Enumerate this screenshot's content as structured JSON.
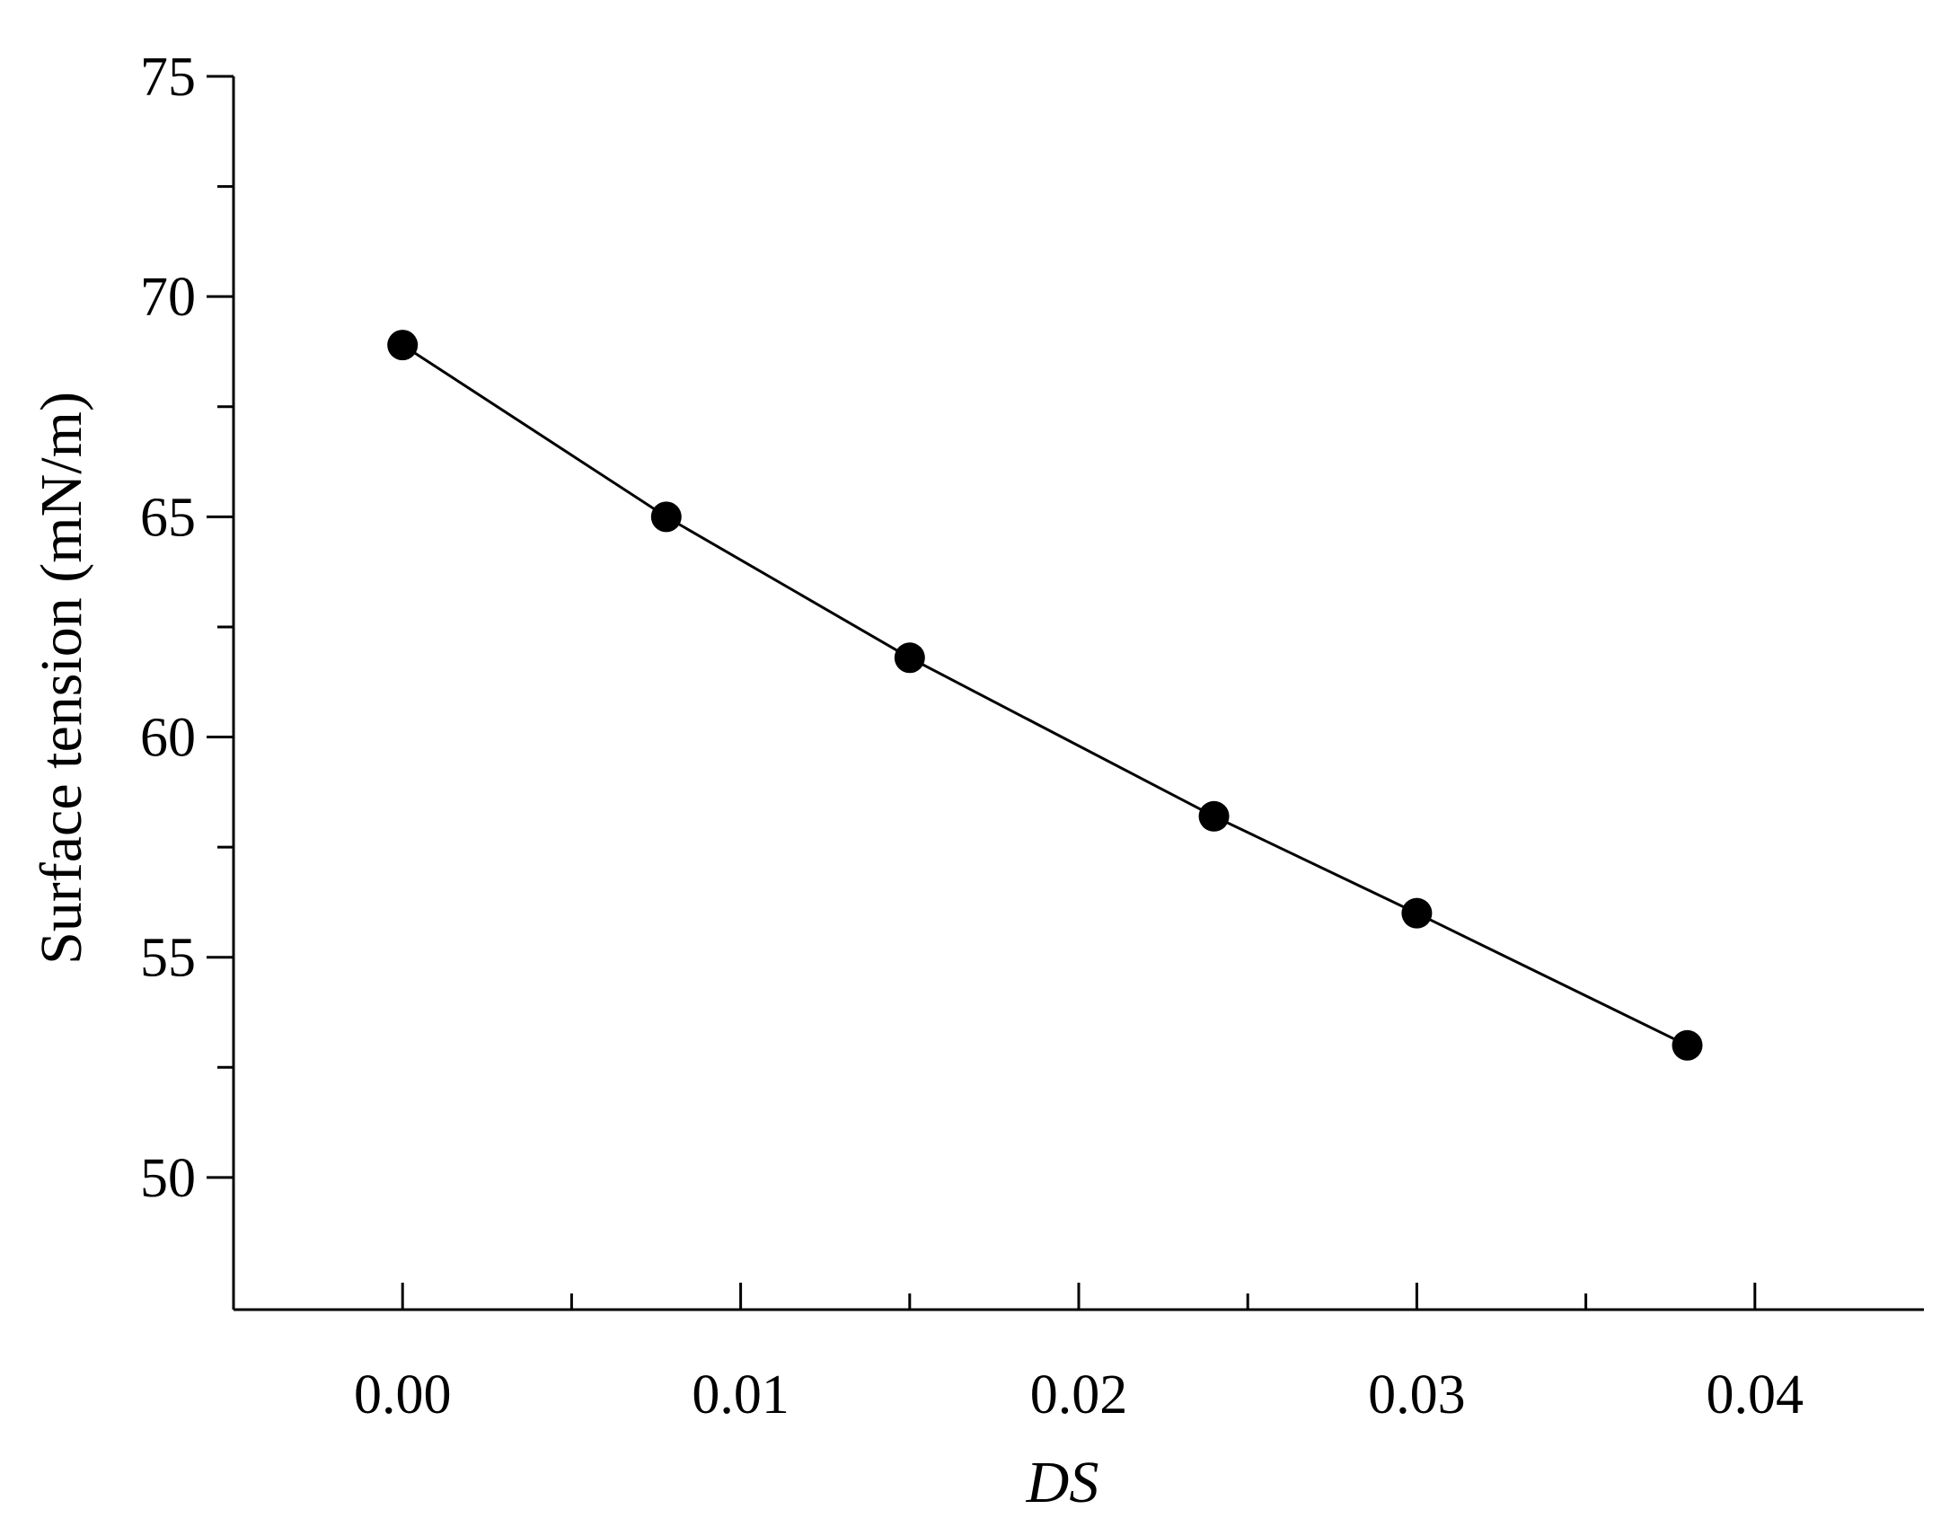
{
  "chart_data": {
    "type": "line",
    "title": "",
    "xlabel": "DS",
    "ylabel": "Surface tension (mN/m)",
    "xlim": [
      -0.005,
      0.045
    ],
    "ylim": [
      47,
      75
    ],
    "x_ticks": [
      "0.00",
      "0.01",
      "0.02",
      "0.03",
      "0.04"
    ],
    "y_ticks": [
      "50",
      "55",
      "60",
      "65",
      "70",
      "75"
    ],
    "x_minor_ticks": [
      0.005,
      0.015,
      0.025,
      0.035
    ],
    "y_minor_ticks": [
      52.5,
      57.5,
      62.5,
      67.5,
      72.5
    ],
    "grid": false,
    "legend": "none",
    "series": [
      {
        "x": [
          0.0,
          0.0078,
          0.015,
          0.024,
          0.03,
          0.038
        ],
        "y": [
          68.9,
          65.0,
          61.8,
          58.2,
          56.0,
          53.0
        ],
        "marker": "filled-circle",
        "color": "#000000"
      }
    ]
  }
}
